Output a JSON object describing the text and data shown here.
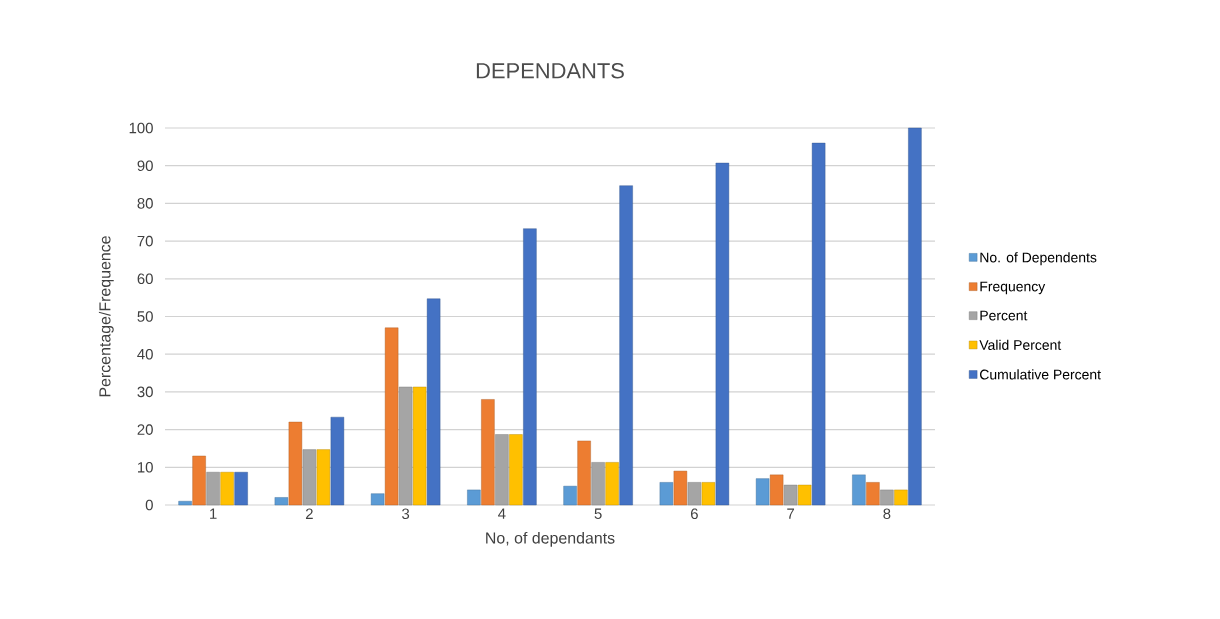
{
  "chart_data": {
    "type": "bar",
    "title": "DEPENDANTS",
    "xlabel": "No, of dependants",
    "ylabel": "Percentage/Frequence",
    "categories": [
      "1",
      "2",
      "3",
      "4",
      "5",
      "6",
      "7",
      "8"
    ],
    "series": [
      {
        "name": "No. of Dependents",
        "color": "#5b9bd5",
        "values": [
          1,
          2,
          3,
          4,
          5,
          6,
          7,
          8
        ]
      },
      {
        "name": "Frequency",
        "color": "#ed7d31",
        "values": [
          13,
          22,
          47,
          28,
          17,
          9,
          8,
          6
        ]
      },
      {
        "name": "Percent",
        "color": "#a5a5a5",
        "values": [
          8.7,
          14.7,
          31.3,
          18.7,
          11.3,
          6.0,
          5.3,
          4.0
        ]
      },
      {
        "name": "Valid Percent",
        "color": "#ffc000",
        "values": [
          8.7,
          14.7,
          31.3,
          18.7,
          11.3,
          6.0,
          5.3,
          4.0
        ]
      },
      {
        "name": "Cumulative Percent",
        "color": "#4472c4",
        "values": [
          8.7,
          23.3,
          54.7,
          73.3,
          84.7,
          90.7,
          96.0,
          100
        ]
      }
    ],
    "ylim": [
      0,
      100
    ],
    "yticks": [
      0,
      10,
      20,
      30,
      40,
      50,
      60,
      70,
      80,
      90,
      100
    ],
    "grid": "y",
    "legend": "right"
  }
}
